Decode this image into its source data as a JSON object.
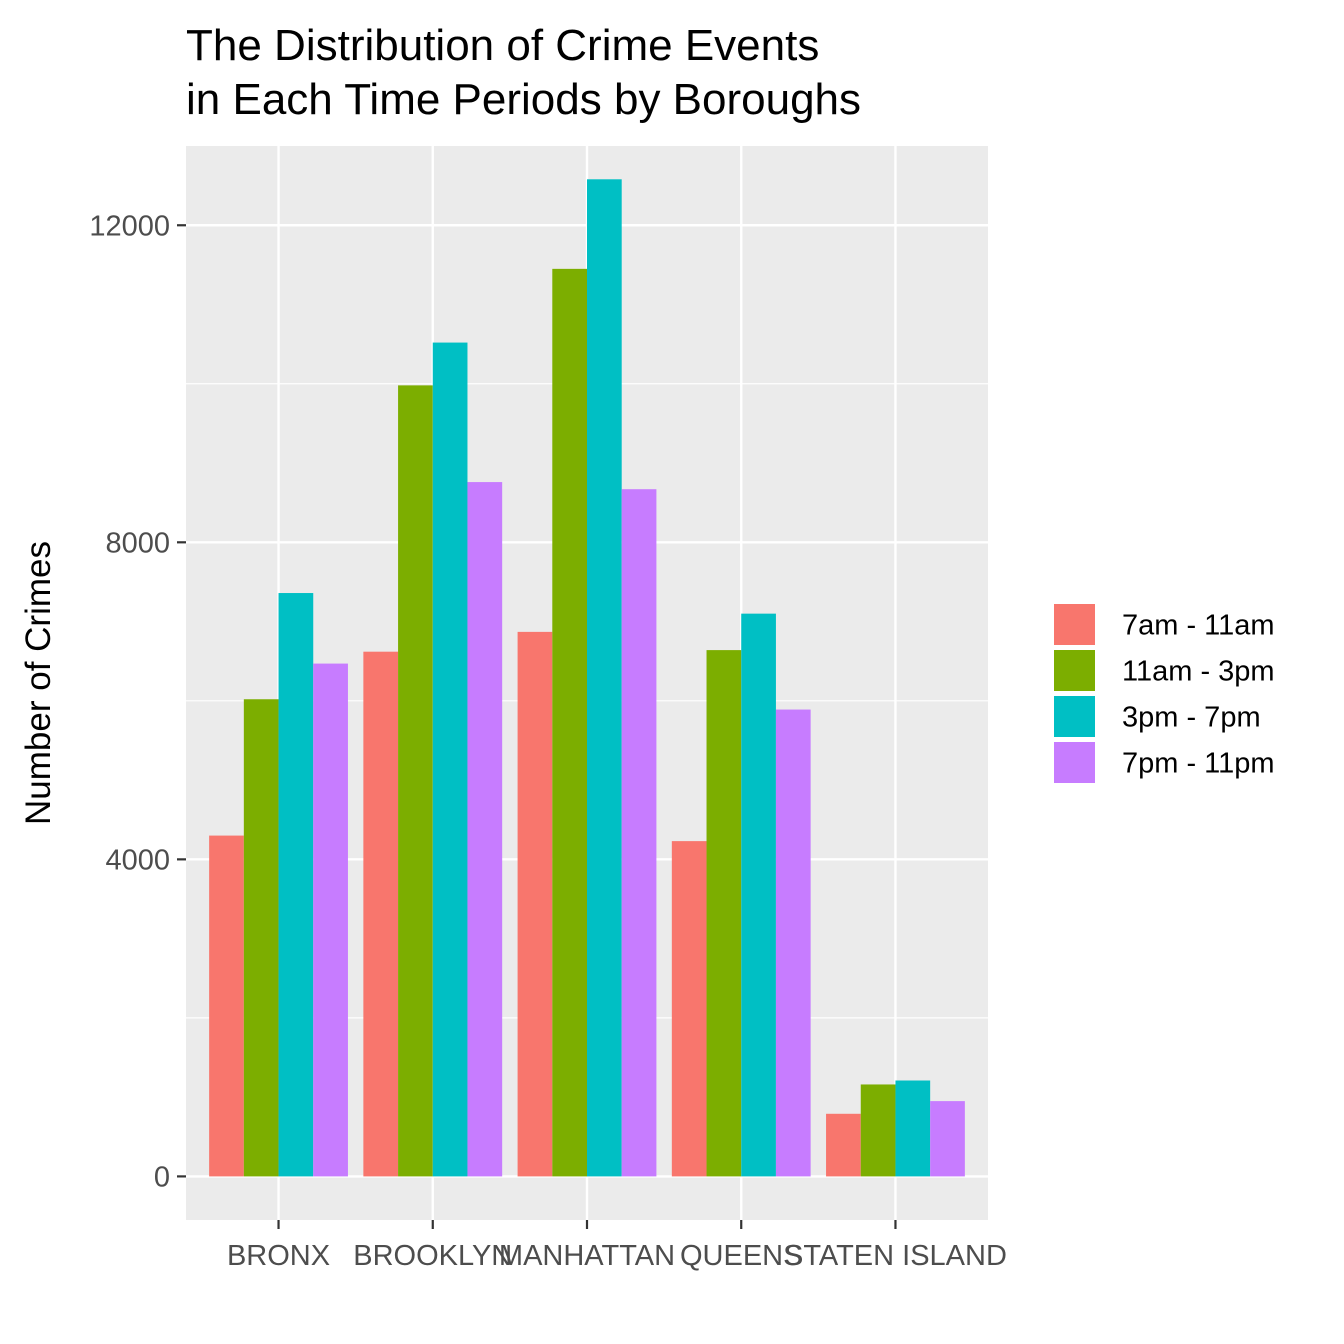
{
  "chart_data": {
    "type": "bar",
    "title": [
      "The Distribution of Crime Events",
      "in Each Time Periods by Boroughs"
    ],
    "xlabel": "",
    "ylabel": "Number of Crimes",
    "categories": [
      "BRONX",
      "BROOKLYN",
      "MANHATTAN",
      "QUEENS",
      "STATEN ISLAND"
    ],
    "ylim": [
      -550,
      13000
    ],
    "yticks": [
      0,
      4000,
      8000,
      12000
    ],
    "grid": true,
    "legend_position": "right",
    "series": [
      {
        "name": "7am - 11am",
        "color": "#F8766D",
        "values": [
          4300,
          6620,
          6870,
          4230,
          790
        ]
      },
      {
        "name": "11am - 3pm",
        "color": "#7CAE00",
        "values": [
          6020,
          9980,
          11450,
          6640,
          1160
        ]
      },
      {
        "name": "3pm - 7pm",
        "color": "#00BFC4",
        "values": [
          7360,
          10520,
          12580,
          7100,
          1210
        ]
      },
      {
        "name": "7pm - 11pm",
        "color": "#C77CFF",
        "values": [
          6470,
          8760,
          8670,
          5890,
          950
        ]
      }
    ],
    "colors": {
      "panel_bg": "#EBEBEB",
      "grid": "#FFFFFF",
      "tick": "#333333"
    }
  }
}
